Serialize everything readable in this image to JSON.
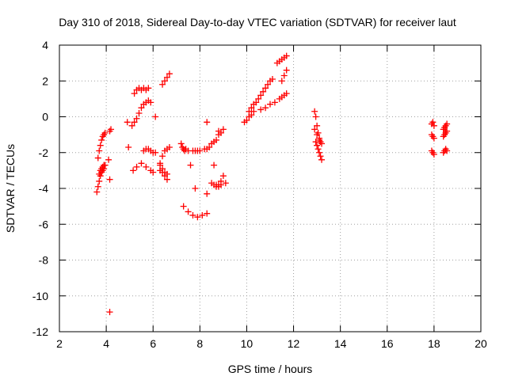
{
  "chart_data": {
    "type": "scatter",
    "title": "Day 310 of 2018, Sidereal Day-to-day VTEC variation (SDTVAR) for receiver laut",
    "xlabel": "GPS time / hours",
    "ylabel": "SDTVAR / TECUs",
    "xlim": [
      2,
      20
    ],
    "ylim": [
      -12,
      4
    ],
    "xticks": [
      2,
      4,
      6,
      8,
      10,
      12,
      14,
      16,
      18,
      20
    ],
    "yticks": [
      -12,
      -10,
      -8,
      -6,
      -4,
      -2,
      0,
      2,
      4
    ],
    "grid": true,
    "marker": "+",
    "color": "#ff0000",
    "series": [
      {
        "name": "SDTVAR",
        "x": [
          3.65,
          3.7,
          3.75,
          3.8,
          3.85,
          3.9,
          3.95,
          3.7,
          3.75,
          3.8,
          3.85,
          3.9,
          3.95,
          3.6,
          3.65,
          3.7,
          3.75,
          3.8,
          3.85,
          3.9,
          4.15,
          4.2,
          4.1,
          4.15,
          4.15,
          4.9,
          4.95,
          5.1,
          5.2,
          5.3,
          5.4,
          5.5,
          5.6,
          5.7,
          5.8,
          5.9,
          5.2,
          5.3,
          5.4,
          5.5,
          5.6,
          5.7,
          5.8,
          5.15,
          5.3,
          5.5,
          5.7,
          5.9,
          6.0,
          5.6,
          5.7,
          5.8,
          5.9,
          6.0,
          6.1,
          6.1,
          6.4,
          6.5,
          6.6,
          6.7,
          6.3,
          6.4,
          6.5,
          6.6,
          6.7,
          6.3,
          6.4,
          6.5,
          6.6,
          6.3,
          6.4,
          6.5,
          6.6,
          7.2,
          7.25,
          7.3,
          7.35,
          7.4,
          7.5,
          7.3,
          7.5,
          7.7,
          7.9,
          8.1,
          7.7,
          7.8,
          7.9,
          8.0,
          8.3,
          8.4,
          8.5,
          8.6,
          8.7,
          8.8,
          8.9,
          9.0,
          8.7,
          8.8,
          8.9,
          9.1,
          8.5,
          8.6,
          8.7,
          8.8,
          8.9,
          9.0,
          8.6,
          8.8,
          8.3,
          8.3,
          8.3,
          8.2,
          7.6,
          7.8,
          9.9,
          10.0,
          10.1,
          10.2,
          10.3,
          10.1,
          10.2,
          10.3,
          10.4,
          10.5,
          10.6,
          10.7,
          10.8,
          10.9,
          11.0,
          11.1,
          10.6,
          10.8,
          11.0,
          11.2,
          11.4,
          11.5,
          11.6,
          11.7,
          11.3,
          11.4,
          11.5,
          11.6,
          11.7,
          11.5,
          11.6,
          11.7,
          12.9,
          12.95,
          13.0,
          13.05,
          13.1,
          13.15,
          13.2,
          12.95,
          13.0,
          13.05,
          13.1,
          13.15,
          13.2,
          12.9,
          13.0,
          13.1,
          17.9,
          17.95,
          18.0,
          17.9,
          17.95,
          18.0,
          17.9,
          17.95,
          18.0,
          18.4,
          18.45,
          18.5,
          18.55,
          18.4,
          18.45,
          18.5,
          18.55,
          18.4,
          18.45,
          18.5,
          18.55
        ],
        "y": [
          -2.3,
          -1.9,
          -1.6,
          -1.3,
          -1.1,
          -1.0,
          -0.9,
          -3.2,
          -3.0,
          -2.9,
          -2.8,
          -2.7,
          -2.7,
          -4.2,
          -3.9,
          -3.6,
          -3.3,
          -3.1,
          -3.0,
          -2.9,
          -0.8,
          -0.7,
          -2.4,
          -3.5,
          -10.9,
          -0.3,
          -1.7,
          -0.5,
          -0.3,
          -0.1,
          0.2,
          0.5,
          0.7,
          0.8,
          0.9,
          0.8,
          1.3,
          1.5,
          1.6,
          1.5,
          1.6,
          1.5,
          1.6,
          -3.0,
          -2.8,
          -2.6,
          -2.8,
          -3.0,
          -3.1,
          -1.9,
          -1.8,
          -1.8,
          -1.9,
          -2.0,
          -2.0,
          0.0,
          1.8,
          2.0,
          2.2,
          2.4,
          -2.7,
          -2.2,
          -1.9,
          -1.8,
          -1.7,
          -3.0,
          -3.1,
          -3.3,
          -3.5,
          -2.6,
          -2.9,
          -3.1,
          -3.2,
          -1.5,
          -1.7,
          -1.8,
          -1.9,
          -1.8,
          -1.9,
          -5.0,
          -5.3,
          -5.5,
          -5.6,
          -5.5,
          -1.9,
          -1.9,
          -1.9,
          -1.9,
          -1.8,
          -1.7,
          -1.5,
          -1.4,
          -1.3,
          -1.0,
          -0.9,
          -0.7,
          -3.8,
          -3.9,
          -3.8,
          -3.7,
          -3.7,
          -3.8,
          -3.9,
          -3.8,
          -3.6,
          -3.3,
          -2.7,
          -0.8,
          -4.3,
          -5.4,
          -0.3,
          -1.8,
          -2.7,
          -4.0,
          -0.3,
          -0.2,
          0.0,
          0.1,
          0.3,
          0.3,
          0.5,
          0.7,
          0.8,
          1.0,
          1.2,
          1.4,
          1.6,
          1.8,
          2.0,
          2.1,
          0.4,
          0.5,
          0.7,
          0.8,
          1.0,
          1.1,
          1.2,
          1.3,
          3.0,
          3.1,
          3.2,
          3.3,
          3.4,
          2.0,
          2.3,
          2.6,
          0.3,
          0.0,
          -0.5,
          -0.9,
          -1.2,
          -1.4,
          -1.5,
          -1.4,
          -1.6,
          -1.8,
          -2.0,
          -2.2,
          -2.4,
          -0.7,
          -1.0,
          -1.3,
          -0.4,
          -0.3,
          -0.5,
          -1.0,
          -1.1,
          -1.2,
          -1.9,
          -2.0,
          -2.1,
          -0.7,
          -0.6,
          -0.5,
          -0.4,
          -1.1,
          -1.0,
          -0.9,
          -0.8,
          -2.0,
          -1.9,
          -1.8,
          -1.9
        ]
      }
    ]
  }
}
